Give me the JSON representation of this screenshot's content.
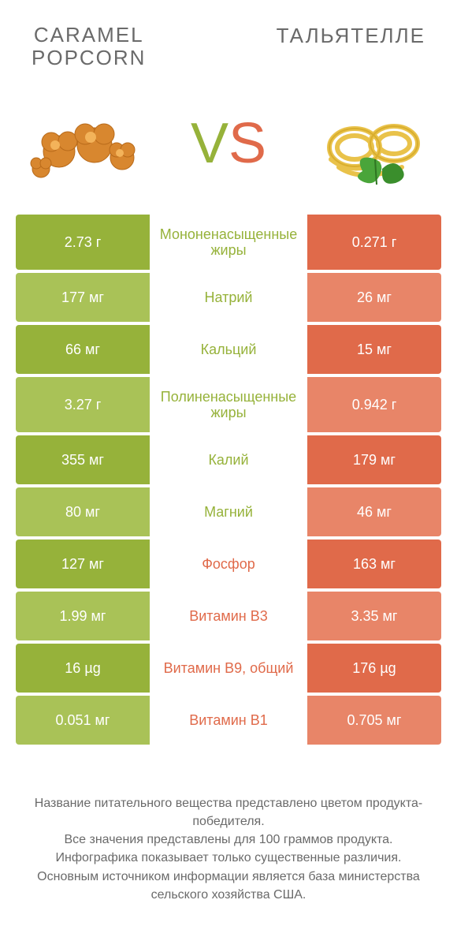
{
  "colors": {
    "green": "#96b23a",
    "green_light": "#a9c257",
    "orange": "#e06a4a",
    "orange_light": "#e88568",
    "text_gray": "#6a6a6a"
  },
  "header": {
    "left_line1": "CARAMEL",
    "left_line2": "POPCORN",
    "right": "ТАЛЬЯТЕЛЛЕ"
  },
  "vs": {
    "v": "V",
    "s": "S"
  },
  "rows": [
    {
      "left": "2.73 г",
      "mid": "Мононенасыщенные жиры",
      "right": "0.271 г",
      "winner": "left",
      "tall": true
    },
    {
      "left": "177 мг",
      "mid": "Натрий",
      "right": "26 мг",
      "winner": "left"
    },
    {
      "left": "66 мг",
      "mid": "Кальций",
      "right": "15 мг",
      "winner": "left"
    },
    {
      "left": "3.27 г",
      "mid": "Полиненасыщенные жиры",
      "right": "0.942 г",
      "winner": "left",
      "tall": true
    },
    {
      "left": "355 мг",
      "mid": "Калий",
      "right": "179 мг",
      "winner": "left"
    },
    {
      "left": "80 мг",
      "mid": "Магний",
      "right": "46 мг",
      "winner": "left"
    },
    {
      "left": "127 мг",
      "mid": "Фосфор",
      "right": "163 мг",
      "winner": "right"
    },
    {
      "left": "1.99 мг",
      "mid": "Витамин B3",
      "right": "3.35 мг",
      "winner": "right"
    },
    {
      "left": "16 µg",
      "mid": "Витамин B9, общий",
      "right": "176 µg",
      "winner": "right"
    },
    {
      "left": "0.051 мг",
      "mid": "Витамин B1",
      "right": "0.705 мг",
      "winner": "right"
    }
  ],
  "footer": {
    "l1": "Название питательного вещества представлено цветом продукта-победителя.",
    "l2": "Все значения представлены для 100 граммов продукта.",
    "l3": "Инфографика показывает только существенные различия.",
    "l4": "Основным источником информации является база министерства сельского хозяйства США."
  }
}
